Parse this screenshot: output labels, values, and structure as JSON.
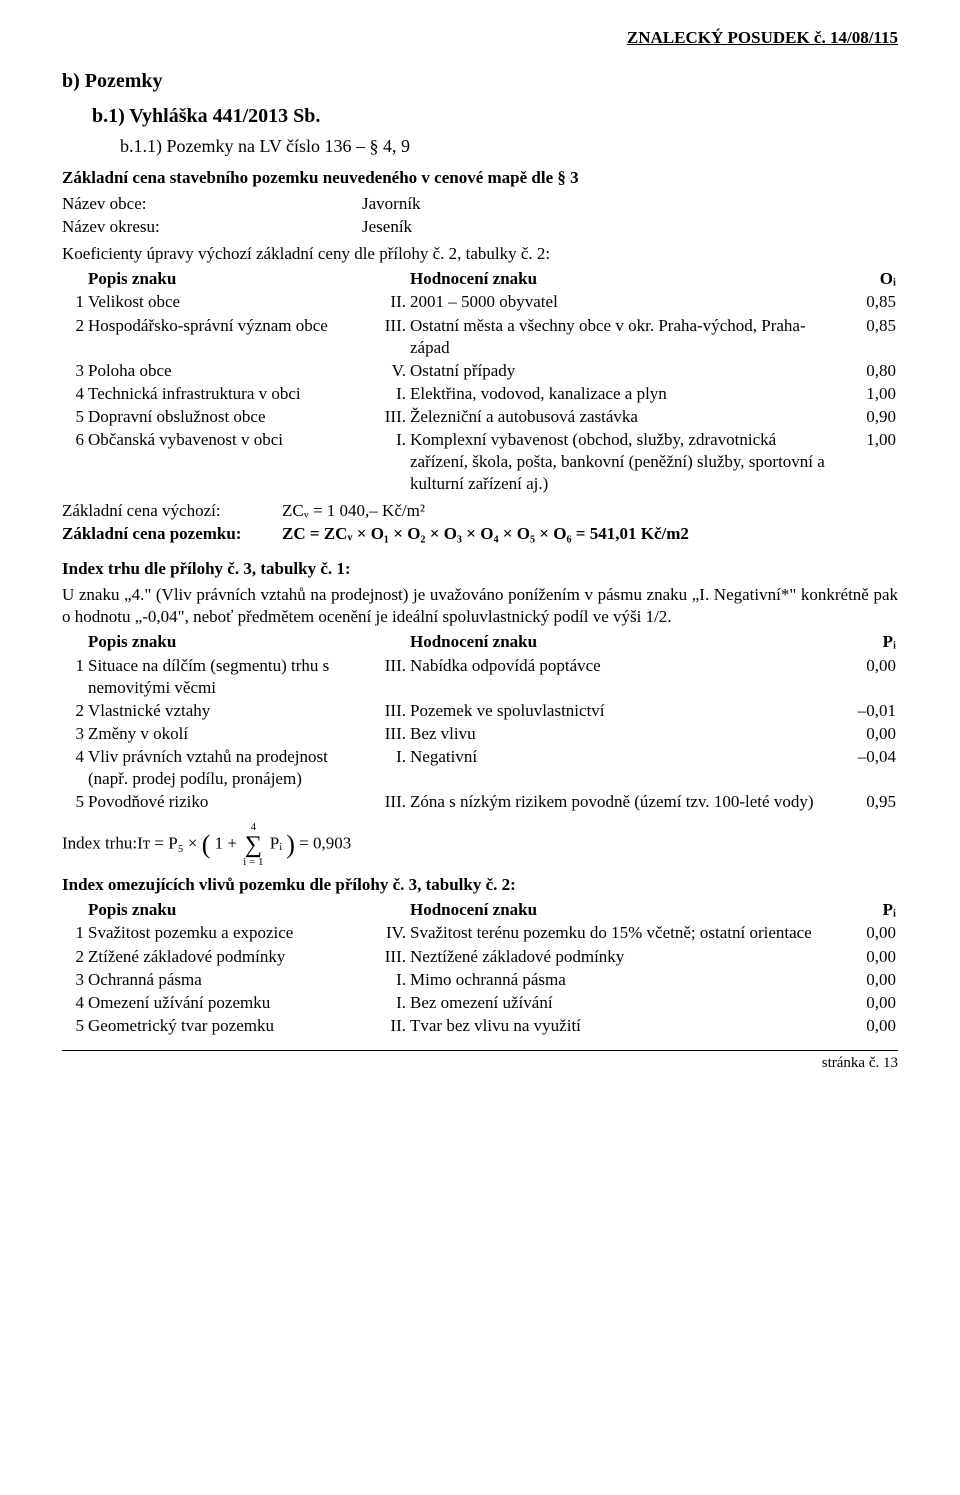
{
  "colors": {
    "text": "#000000",
    "bg": "#ffffff",
    "rule": "#000000"
  },
  "fonts": {
    "body_family": "Times New Roman",
    "body_pt": 13,
    "heading_pt": 15
  },
  "header": {
    "doc_ref": "ZNALECKÝ POSUDEK č. 14/08/115"
  },
  "sec_b": {
    "title": "b)  Pozemky"
  },
  "sec_b1": {
    "title": "b.1)  Vyhláška 441/2013 Sb."
  },
  "sec_b11": {
    "title": "b.1.1)  Pozemky na LV číslo 136 – § 4, 9"
  },
  "intro": {
    "line": "Základní cena stavebního pozemku neuvedeného v cenové mapě dle § 3"
  },
  "kv": {
    "obec_label": "Název obce:",
    "obec_value": "Javorník",
    "okres_label": "Název okresu:",
    "okres_value": "Jeseník",
    "koef_line": "Koeficienty úpravy výchozí základní ceny dle přílohy č. 2, tabulky č. 2:"
  },
  "table1_head": {
    "popis": "Popis znaku",
    "hodn": "Hodnocení znaku",
    "sym": "Oᵢ"
  },
  "table1": [
    {
      "n": "1",
      "popis": "Velikost obce",
      "roman": "II.",
      "hodn": "2001 – 5000 obyvatel",
      "val": "0,85"
    },
    {
      "n": "2",
      "popis": "Hospodářsko-správní význam obce",
      "roman": "III.",
      "hodn": "Ostatní města a všechny obce v okr. Praha-východ, Praha-západ",
      "val": "0,85"
    },
    {
      "n": "3",
      "popis": "Poloha obce",
      "roman": "V.",
      "hodn": "Ostatní případy",
      "val": "0,80"
    },
    {
      "n": "4",
      "popis": "Technická infrastruktura v obci",
      "roman": "I.",
      "hodn": "Elektřina, vodovod, kanalizace a plyn",
      "val": "1,00"
    },
    {
      "n": "5",
      "popis": "Dopravní obslužnost obce",
      "roman": "III.",
      "hodn": "Železniční a autobusová zastávka",
      "val": "0,90"
    },
    {
      "n": "6",
      "popis": "Občanská vybavenost v obci",
      "roman": "I.",
      "hodn": "Komplexní vybavenost (obchod, služby, zdravotnická zařízení, škola, pošta, bankovní (peněžní) služby, sportovní a kulturní zařízení aj.)",
      "val": "1,00"
    }
  ],
  "zc": {
    "vychozi_label": "Základní cena výchozí:",
    "vychozi_eq": "ZCᵥ = 1 040,– Kč/m²",
    "pozemku_label": "Základní cena pozemku:",
    "pozemku_eq": "ZC = ZCᵥ × O₁ × O₂ × O₃ × O₄ × O₅ × O₆ = 541,01 Kč/m2"
  },
  "index_trhu": {
    "heading": "Index trhu dle přílohy č. 3, tabulky č. 1:",
    "para": "U znaku „4.\" (Vliv právních vztahů na prodejnost) je uvažováno ponížením v pásmu znaku „I. Negativní*\" konkrétně pak o hodnotu „-0,04\", neboť předmětem ocenění je ideální spoluvlastnický podíl ve výši 1/2."
  },
  "table2_head": {
    "popis": "Popis znaku",
    "hodn": "Hodnocení znaku",
    "sym": "Pᵢ"
  },
  "table2": [
    {
      "n": "1",
      "popis": "Situace na dílčím (segmentu) trhu s nemovitými věcmi",
      "roman": "III.",
      "hodn": "Nabídka odpovídá poptávce",
      "val": "0,00"
    },
    {
      "n": "2",
      "popis": "Vlastnické vztahy",
      "roman": "III.",
      "hodn": "Pozemek ve spoluvlastnictví",
      "val": "–0,01"
    },
    {
      "n": "3",
      "popis": "Změny v okolí",
      "roman": "III.",
      "hodn": "Bez vlivu",
      "val": "0,00"
    },
    {
      "n": "4",
      "popis": "Vliv právních vztahů na prodejnost (např. prodej podílu, pronájem)",
      "roman": "I.",
      "hodn": "Negativní",
      "val": "–0,04"
    },
    {
      "n": "5",
      "popis": "Povodňové riziko",
      "roman": "III.",
      "hodn": "Zóna s nízkým rizikem povodně (území tzv. 100-leté vody)",
      "val": "0,95"
    }
  ],
  "it_formula": {
    "left": "Index trhu:Iᴛ = P₅ × ",
    "open": "(",
    "one": "1 + ",
    "sum_top": "4",
    "sum_bot": "i = 1",
    "pi": " Pᵢ",
    "close": ")",
    "eq": " = 0,903"
  },
  "index_omez": {
    "heading": "Index omezujících vlivů pozemku dle přílohy č. 3, tabulky č. 2:"
  },
  "table3_head": {
    "popis": "Popis znaku",
    "hodn": "Hodnocení znaku",
    "sym": "Pᵢ"
  },
  "table3": [
    {
      "n": "1",
      "popis": "Svažitost pozemku a expozice",
      "roman": "IV.",
      "hodn": "Svažitost terénu pozemku do 15% včetně; ostatní orientace",
      "val": "0,00"
    },
    {
      "n": "2",
      "popis": "Ztížené základové podmínky",
      "roman": "III.",
      "hodn": "Neztížené základové podmínky",
      "val": "0,00"
    },
    {
      "n": "3",
      "popis": "Ochranná pásma",
      "roman": "I.",
      "hodn": "Mimo ochranná pásma",
      "val": "0,00"
    },
    {
      "n": "4",
      "popis": "Omezení užívání pozemku",
      "roman": "I.",
      "hodn": "Bez omezení užívání",
      "val": "0,00"
    },
    {
      "n": "5",
      "popis": "Geometrický tvar pozemku",
      "roman": "II.",
      "hodn": "Tvar bez vlivu na využití",
      "val": "0,00"
    }
  ],
  "footer": {
    "page": "stránka č.  13"
  }
}
